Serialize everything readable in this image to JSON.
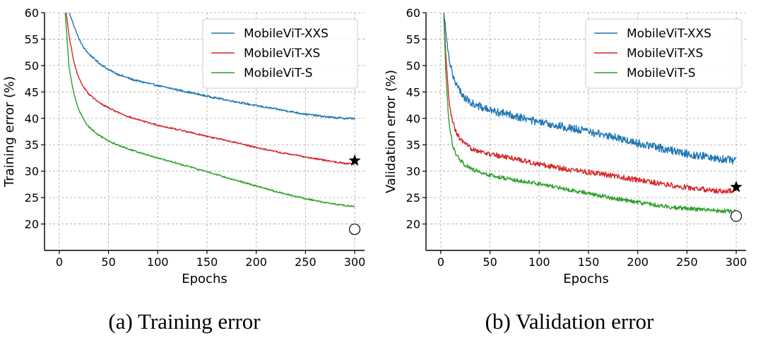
{
  "chart_data": [
    {
      "type": "line",
      "title": "",
      "caption": "(a) Training error",
      "xlabel": "Epochs",
      "ylabel": "Training error (%)",
      "xlim": [
        -15,
        310
      ],
      "ylim": [
        15,
        60
      ],
      "xticks": [
        0,
        50,
        100,
        150,
        200,
        250,
        300
      ],
      "yticks": [
        20,
        25,
        30,
        35,
        40,
        45,
        50,
        55,
        60
      ],
      "grid": true,
      "legend_position": "top-right",
      "series": [
        {
          "name": "MobileViT-XXS",
          "color": "#1f77b4",
          "x": [
            10,
            15,
            20,
            25,
            30,
            40,
            50,
            60,
            75,
            100,
            125,
            150,
            175,
            200,
            225,
            250,
            275,
            290,
            300
          ],
          "y": [
            60,
            57.5,
            55,
            53.3,
            52.2,
            50.5,
            49.2,
            48.3,
            47.3,
            46.2,
            45.2,
            44.2,
            43.3,
            42.4,
            41.6,
            40.8,
            40.2,
            40.0,
            40.0
          ],
          "noise": 0.18
        },
        {
          "name": "MobileViT-XS",
          "color": "#d62728",
          "x": [
            7,
            10,
            15,
            20,
            25,
            30,
            40,
            50,
            60,
            75,
            100,
            125,
            150,
            175,
            200,
            225,
            250,
            275,
            290,
            300
          ],
          "y": [
            60,
            55.5,
            50.5,
            47.5,
            45.8,
            44.6,
            43.0,
            42.0,
            41.1,
            40.0,
            38.7,
            37.7,
            36.6,
            35.6,
            34.5,
            33.5,
            32.7,
            31.9,
            31.5,
            31.4
          ],
          "noise": 0.15
        },
        {
          "name": "MobileViT-S",
          "color": "#2ca02c",
          "x": [
            6,
            10,
            15,
            20,
            25,
            30,
            40,
            50,
            60,
            75,
            100,
            125,
            150,
            175,
            200,
            225,
            250,
            275,
            290,
            300
          ],
          "y": [
            60,
            49.5,
            44.5,
            41.5,
            39.7,
            38.4,
            36.8,
            35.7,
            34.9,
            33.9,
            32.5,
            31.2,
            29.9,
            28.5,
            27.2,
            25.9,
            24.8,
            23.9,
            23.5,
            23.3
          ],
          "noise": 0.15
        }
      ],
      "markers": [
        {
          "shape": "star",
          "x": 300,
          "y": 32
        },
        {
          "shape": "circle",
          "x": 300,
          "y": 19
        }
      ]
    },
    {
      "type": "line",
      "title": "",
      "caption": "(b) Validation error",
      "xlabel": "Epochs",
      "ylabel": "Validation error (%)",
      "xlim": [
        -15,
        310
      ],
      "ylim": [
        15,
        60
      ],
      "xticks": [
        0,
        50,
        100,
        150,
        200,
        250,
        300
      ],
      "yticks": [
        20,
        25,
        30,
        35,
        40,
        45,
        50,
        55,
        60
      ],
      "grid": true,
      "legend_position": "top-right",
      "series": [
        {
          "name": "MobileViT-XXS",
          "color": "#1f77b4",
          "x": [
            3,
            5,
            8,
            10,
            12,
            15,
            20,
            25,
            30,
            40,
            50,
            75,
            100,
            125,
            150,
            175,
            200,
            225,
            250,
            275,
            290,
            300
          ],
          "y": [
            60,
            57,
            52,
            50,
            48.5,
            46.5,
            45,
            43.8,
            43,
            42.2,
            41.5,
            40.5,
            39.2,
            38.4,
            37.5,
            36.5,
            35.3,
            34.3,
            33.3,
            32.6,
            32.2,
            32.0
          ],
          "noise": 0.75
        },
        {
          "name": "MobileViT-XS",
          "color": "#d62728",
          "x": [
            3,
            5,
            8,
            10,
            12,
            15,
            20,
            25,
            30,
            40,
            50,
            75,
            100,
            125,
            150,
            175,
            200,
            225,
            250,
            275,
            290,
            300
          ],
          "y": [
            60,
            52,
            44,
            41,
            39.5,
            37.5,
            36,
            35,
            34.4,
            33.8,
            33.2,
            32.4,
            31.3,
            30.5,
            29.8,
            29.1,
            28.3,
            27.6,
            26.9,
            26.4,
            26.1,
            26.4
          ],
          "noise": 0.5
        },
        {
          "name": "MobileViT-S",
          "color": "#2ca02c",
          "x": [
            3,
            5,
            8,
            10,
            12,
            15,
            20,
            25,
            30,
            40,
            50,
            75,
            100,
            125,
            150,
            175,
            200,
            225,
            250,
            275,
            290,
            300
          ],
          "y": [
            60,
            49,
            40,
            37,
            35,
            33.3,
            32,
            31.2,
            30.5,
            29.8,
            29.2,
            28.3,
            27.6,
            26.7,
            25.8,
            24.9,
            24.1,
            23.4,
            22.9,
            22.6,
            22.4,
            22.3
          ],
          "noise": 0.4
        }
      ],
      "markers": [
        {
          "shape": "star",
          "x": 300,
          "y": 27
        },
        {
          "shape": "circle",
          "x": 300,
          "y": 21.5
        }
      ]
    }
  ]
}
